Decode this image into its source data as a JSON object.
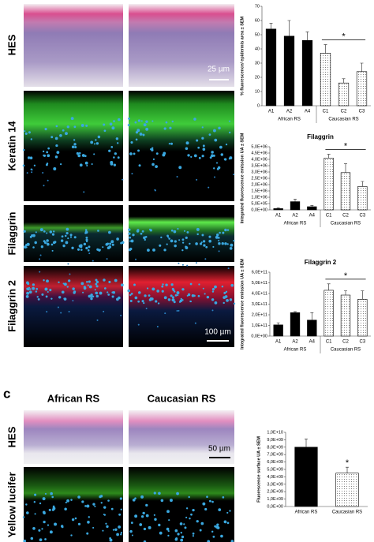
{
  "figure": {
    "rows": [
      "HES",
      "Keratin 14",
      "Filaggrin",
      "Filaggrin 2"
    ],
    "scale_top": "25 µm",
    "scale_mid": "100 µm",
    "panel_c": "c",
    "columns_c": [
      "African RS",
      "Caucasian RS"
    ],
    "rows_c": [
      "HES",
      "Yellow lucifer"
    ],
    "scale_c": "50 µm"
  },
  "chart_data": [
    {
      "type": "bar",
      "ylabel": "% fluorescence/ epidermis area ± SEM",
      "categories": [
        "A1",
        "A2",
        "A4",
        "C1",
        "C2",
        "C3"
      ],
      "values": [
        54,
        49,
        46,
        37,
        16,
        24
      ],
      "errors": [
        4,
        11,
        6,
        6,
        3,
        6
      ],
      "styles": [
        "solid",
        "solid",
        "solid",
        "dotted",
        "dotted",
        "dotted"
      ],
      "groups": [
        "African RS",
        "Caucasian RS"
      ],
      "significance": "*",
      "color": "#000000",
      "ylim": [
        0,
        70
      ],
      "yticks": [
        0,
        10,
        20,
        30,
        40,
        50,
        60,
        70
      ]
    },
    {
      "type": "bar",
      "title": "Filaggrin",
      "ylabel": "Integrated fluorescence emission UA ± SEM",
      "categories": [
        "A1",
        "A2",
        "A4",
        "C1",
        "C2",
        "C3"
      ],
      "values": [
        100000,
        650000,
        250000,
        4100000,
        2950000,
        1850000
      ],
      "errors": [
        50000,
        200000,
        100000,
        300000,
        700000,
        400000
      ],
      "styles": [
        "solid",
        "solid",
        "solid",
        "dotted",
        "dotted",
        "dotted"
      ],
      "groups": [
        "African RS",
        "Caucasian RS"
      ],
      "significance": "*",
      "color": "#000000",
      "ylim": [
        0,
        5000000
      ],
      "yticks": [
        {
          "value": 0,
          "label": "0,0E+00"
        },
        {
          "value": 500000,
          "label": "5,0E+05"
        },
        {
          "value": 1000000,
          "label": "1,0E+06"
        },
        {
          "value": 1500000,
          "label": "1,5E+06"
        },
        {
          "value": 2000000,
          "label": "2,0E+06"
        },
        {
          "value": 2500000,
          "label": "2,5E+06"
        },
        {
          "value": 3000000,
          "label": "3,0E+06"
        },
        {
          "value": 3500000,
          "label": "3,5E+06"
        },
        {
          "value": 4000000,
          "label": "4,0E+06"
        },
        {
          "value": 4500000,
          "label": "4,5E+06"
        },
        {
          "value": 5000000,
          "label": "5,0E+06"
        }
      ]
    },
    {
      "type": "bar",
      "title": "Filaggrin 2",
      "ylabel": "Integrated fluorescence emission UA ± SEM",
      "categories": [
        "A1",
        "A2",
        "A4",
        "C1",
        "C2",
        "C3"
      ],
      "values": [
        105000000000,
        220000000000,
        150000000000,
        430000000000,
        385000000000,
        345000000000
      ],
      "errors": [
        20000000000,
        10000000000,
        70000000000,
        60000000000,
        40000000000,
        80000000000
      ],
      "styles": [
        "solid",
        "solid",
        "solid",
        "dotted",
        "dotted",
        "dotted"
      ],
      "groups": [
        "African RS",
        "Caucasian RS"
      ],
      "significance": "*",
      "color": "#000000",
      "ylim": [
        0,
        600000000000
      ],
      "yticks": [
        {
          "value": 0,
          "label": "0,0E+00"
        },
        {
          "value": 100000000000,
          "label": "1,0E+11"
        },
        {
          "value": 200000000000,
          "label": "2,0E+11"
        },
        {
          "value": 300000000000,
          "label": "3,0E+11"
        },
        {
          "value": 400000000000,
          "label": "4,0E+11"
        },
        {
          "value": 500000000000,
          "label": "5,0E+11"
        },
        {
          "value": 600000000000,
          "label": "6,0E+11"
        }
      ]
    },
    {
      "type": "bar",
      "ylabel": "Fluorescence surface UA ± SEM",
      "categories": [
        "African RS",
        "Caucasian RS"
      ],
      "values": [
        8000000000,
        4500000000
      ],
      "errors": [
        1100000000,
        800000000
      ],
      "styles": [
        "solid",
        "dotted"
      ],
      "significance": "*",
      "color": "#000000",
      "ylim": [
        0,
        10000000000
      ],
      "yticks": [
        {
          "value": 0,
          "label": "0,0E+00"
        },
        {
          "value": 1000000000,
          "label": "1,0E+09"
        },
        {
          "value": 2000000000,
          "label": "2,0E+09"
        },
        {
          "value": 3000000000,
          "label": "3,0E+09"
        },
        {
          "value": 4000000000,
          "label": "4,0E+09"
        },
        {
          "value": 5000000000,
          "label": "5,0E+09"
        },
        {
          "value": 6000000000,
          "label": "6,0E+09"
        },
        {
          "value": 7000000000,
          "label": "7,0E+09"
        },
        {
          "value": 8000000000,
          "label": "8,0E+09"
        },
        {
          "value": 9000000000,
          "label": "9,0E+09"
        },
        {
          "value": 10000000000,
          "label": "1,0E+10"
        }
      ]
    }
  ]
}
